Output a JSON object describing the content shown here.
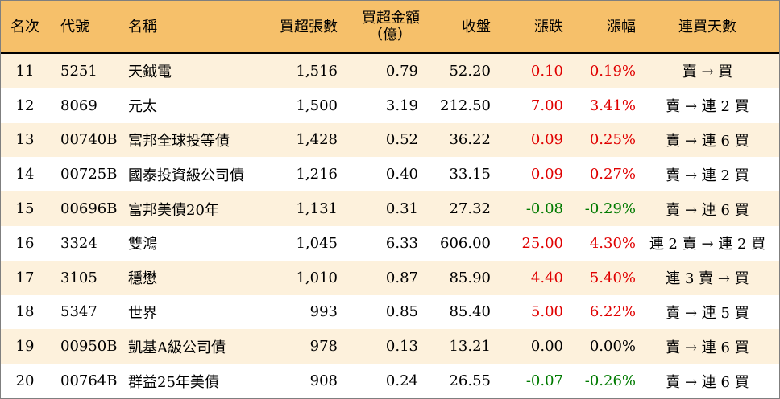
{
  "header": {
    "rank": "名次",
    "code": "代號",
    "name": "名稱",
    "volume": "買超張數",
    "amount_line1": "買超金額",
    "amount_line2": "（億）",
    "close": "收盤",
    "change": "漲跌",
    "pct": "漲幅",
    "days": "連買天數"
  },
  "colors": {
    "header_bg": "#f6c06a",
    "stripe_bg": "#fdf1dc",
    "up": "#e00000",
    "down": "#007a00"
  },
  "rows": [
    {
      "rank": "11",
      "code": "5251",
      "name": "天鉞電",
      "volume": "1,516",
      "amount": "0.79",
      "close": "52.20",
      "change": "0.10",
      "pct": "0.19%",
      "days": "賣 → 買",
      "dir": "up"
    },
    {
      "rank": "12",
      "code": "8069",
      "name": "元太",
      "volume": "1,500",
      "amount": "3.19",
      "close": "212.50",
      "change": "7.00",
      "pct": "3.41%",
      "days": "賣 → 連 2 買",
      "dir": "up"
    },
    {
      "rank": "13",
      "code": "00740B",
      "name": "富邦全球投等債",
      "volume": "1,428",
      "amount": "0.52",
      "close": "36.22",
      "change": "0.09",
      "pct": "0.25%",
      "days": "賣 → 連 6 買",
      "dir": "up"
    },
    {
      "rank": "14",
      "code": "00725B",
      "name": "國泰投資級公司債",
      "volume": "1,216",
      "amount": "0.40",
      "close": "33.15",
      "change": "0.09",
      "pct": "0.27%",
      "days": "賣 → 連 2 買",
      "dir": "up"
    },
    {
      "rank": "15",
      "code": "00696B",
      "name": "富邦美債20年",
      "volume": "1,131",
      "amount": "0.31",
      "close": "27.32",
      "change": "-0.08",
      "pct": "-0.29%",
      "days": "賣 → 連 6 買",
      "dir": "down"
    },
    {
      "rank": "16",
      "code": "3324",
      "name": "雙鴻",
      "volume": "1,045",
      "amount": "6.33",
      "close": "606.00",
      "change": "25.00",
      "pct": "4.30%",
      "days": "連 2 賣 → 連 2 買",
      "dir": "up"
    },
    {
      "rank": "17",
      "code": "3105",
      "name": "穩懋",
      "volume": "1,010",
      "amount": "0.87",
      "close": "85.90",
      "change": "4.40",
      "pct": "5.40%",
      "days": "連 3 賣 → 買",
      "dir": "up"
    },
    {
      "rank": "18",
      "code": "5347",
      "name": "世界",
      "volume": "993",
      "amount": "0.85",
      "close": "85.40",
      "change": "5.00",
      "pct": "6.22%",
      "days": "賣 → 連 5 買",
      "dir": "up"
    },
    {
      "rank": "19",
      "code": "00950B",
      "name": "凱基A級公司債",
      "volume": "978",
      "amount": "0.13",
      "close": "13.21",
      "change": "0.00",
      "pct": "0.00%",
      "days": "賣 → 連 6 買",
      "dir": "flat"
    },
    {
      "rank": "20",
      "code": "00764B",
      "name": "群益25年美債",
      "volume": "908",
      "amount": "0.24",
      "close": "26.55",
      "change": "-0.07",
      "pct": "-0.26%",
      "days": "賣 → 連 6 買",
      "dir": "down"
    }
  ]
}
